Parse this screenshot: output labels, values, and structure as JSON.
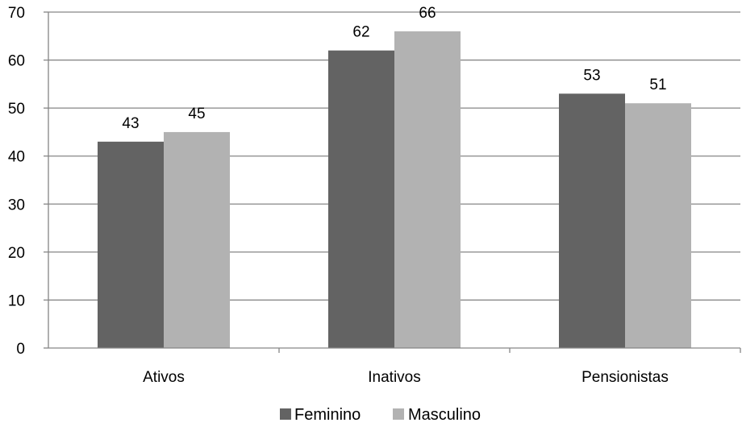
{
  "chart_data": {
    "type": "bar",
    "categories": [
      "Ativos",
      "Inativos",
      "Pensionistas"
    ],
    "series": [
      {
        "name": "Feminino",
        "values": [
          43,
          62,
          53
        ],
        "color": "#636363"
      },
      {
        "name": "Masculino",
        "values": [
          45,
          66,
          51
        ],
        "color": "#b2b2b2"
      }
    ],
    "title": "",
    "xlabel": "",
    "ylabel": "",
    "ylim": [
      0,
      70
    ],
    "yticks": [
      0,
      10,
      20,
      30,
      40,
      50,
      60,
      70
    ],
    "grid": true,
    "legend_position": "bottom"
  }
}
